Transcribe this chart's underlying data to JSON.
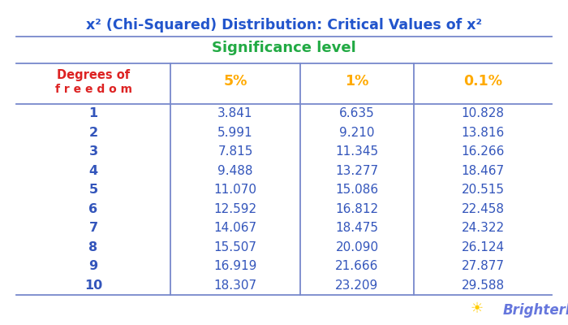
{
  "title": "x² (Chi-Squared) Distribution: Critical Values of x²",
  "significance_label": "Significance level",
  "col_header_label_line1": "Degrees of",
  "col_header_label_line2": "f r e e d o m",
  "col_headers": [
    "5%",
    "1%",
    "0.1%"
  ],
  "degrees": [
    1,
    2,
    3,
    4,
    5,
    6,
    7,
    8,
    9,
    10
  ],
  "values_5pct": [
    3.841,
    5.991,
    7.815,
    9.488,
    11.07,
    12.592,
    14.067,
    15.507,
    16.919,
    18.307
  ],
  "values_1pct": [
    6.635,
    9.21,
    11.345,
    13.277,
    15.086,
    16.812,
    18.475,
    20.09,
    21.666,
    23.209
  ],
  "values_01pct": [
    10.828,
    13.816,
    16.266,
    18.467,
    20.515,
    22.458,
    24.322,
    26.124,
    27.877,
    29.588
  ],
  "title_color": "#2255cc",
  "significance_color": "#22aa44",
  "col_header_dof_color": "#dd2222",
  "col_header_pct_color": "#ffaa00",
  "data_color": "#3355bb",
  "dof_color": "#3355bb",
  "line_color": "#7788cc",
  "background_color": "#ffffff",
  "logo_color": "#6677dd",
  "logo_sun_color": "#ffcc00"
}
